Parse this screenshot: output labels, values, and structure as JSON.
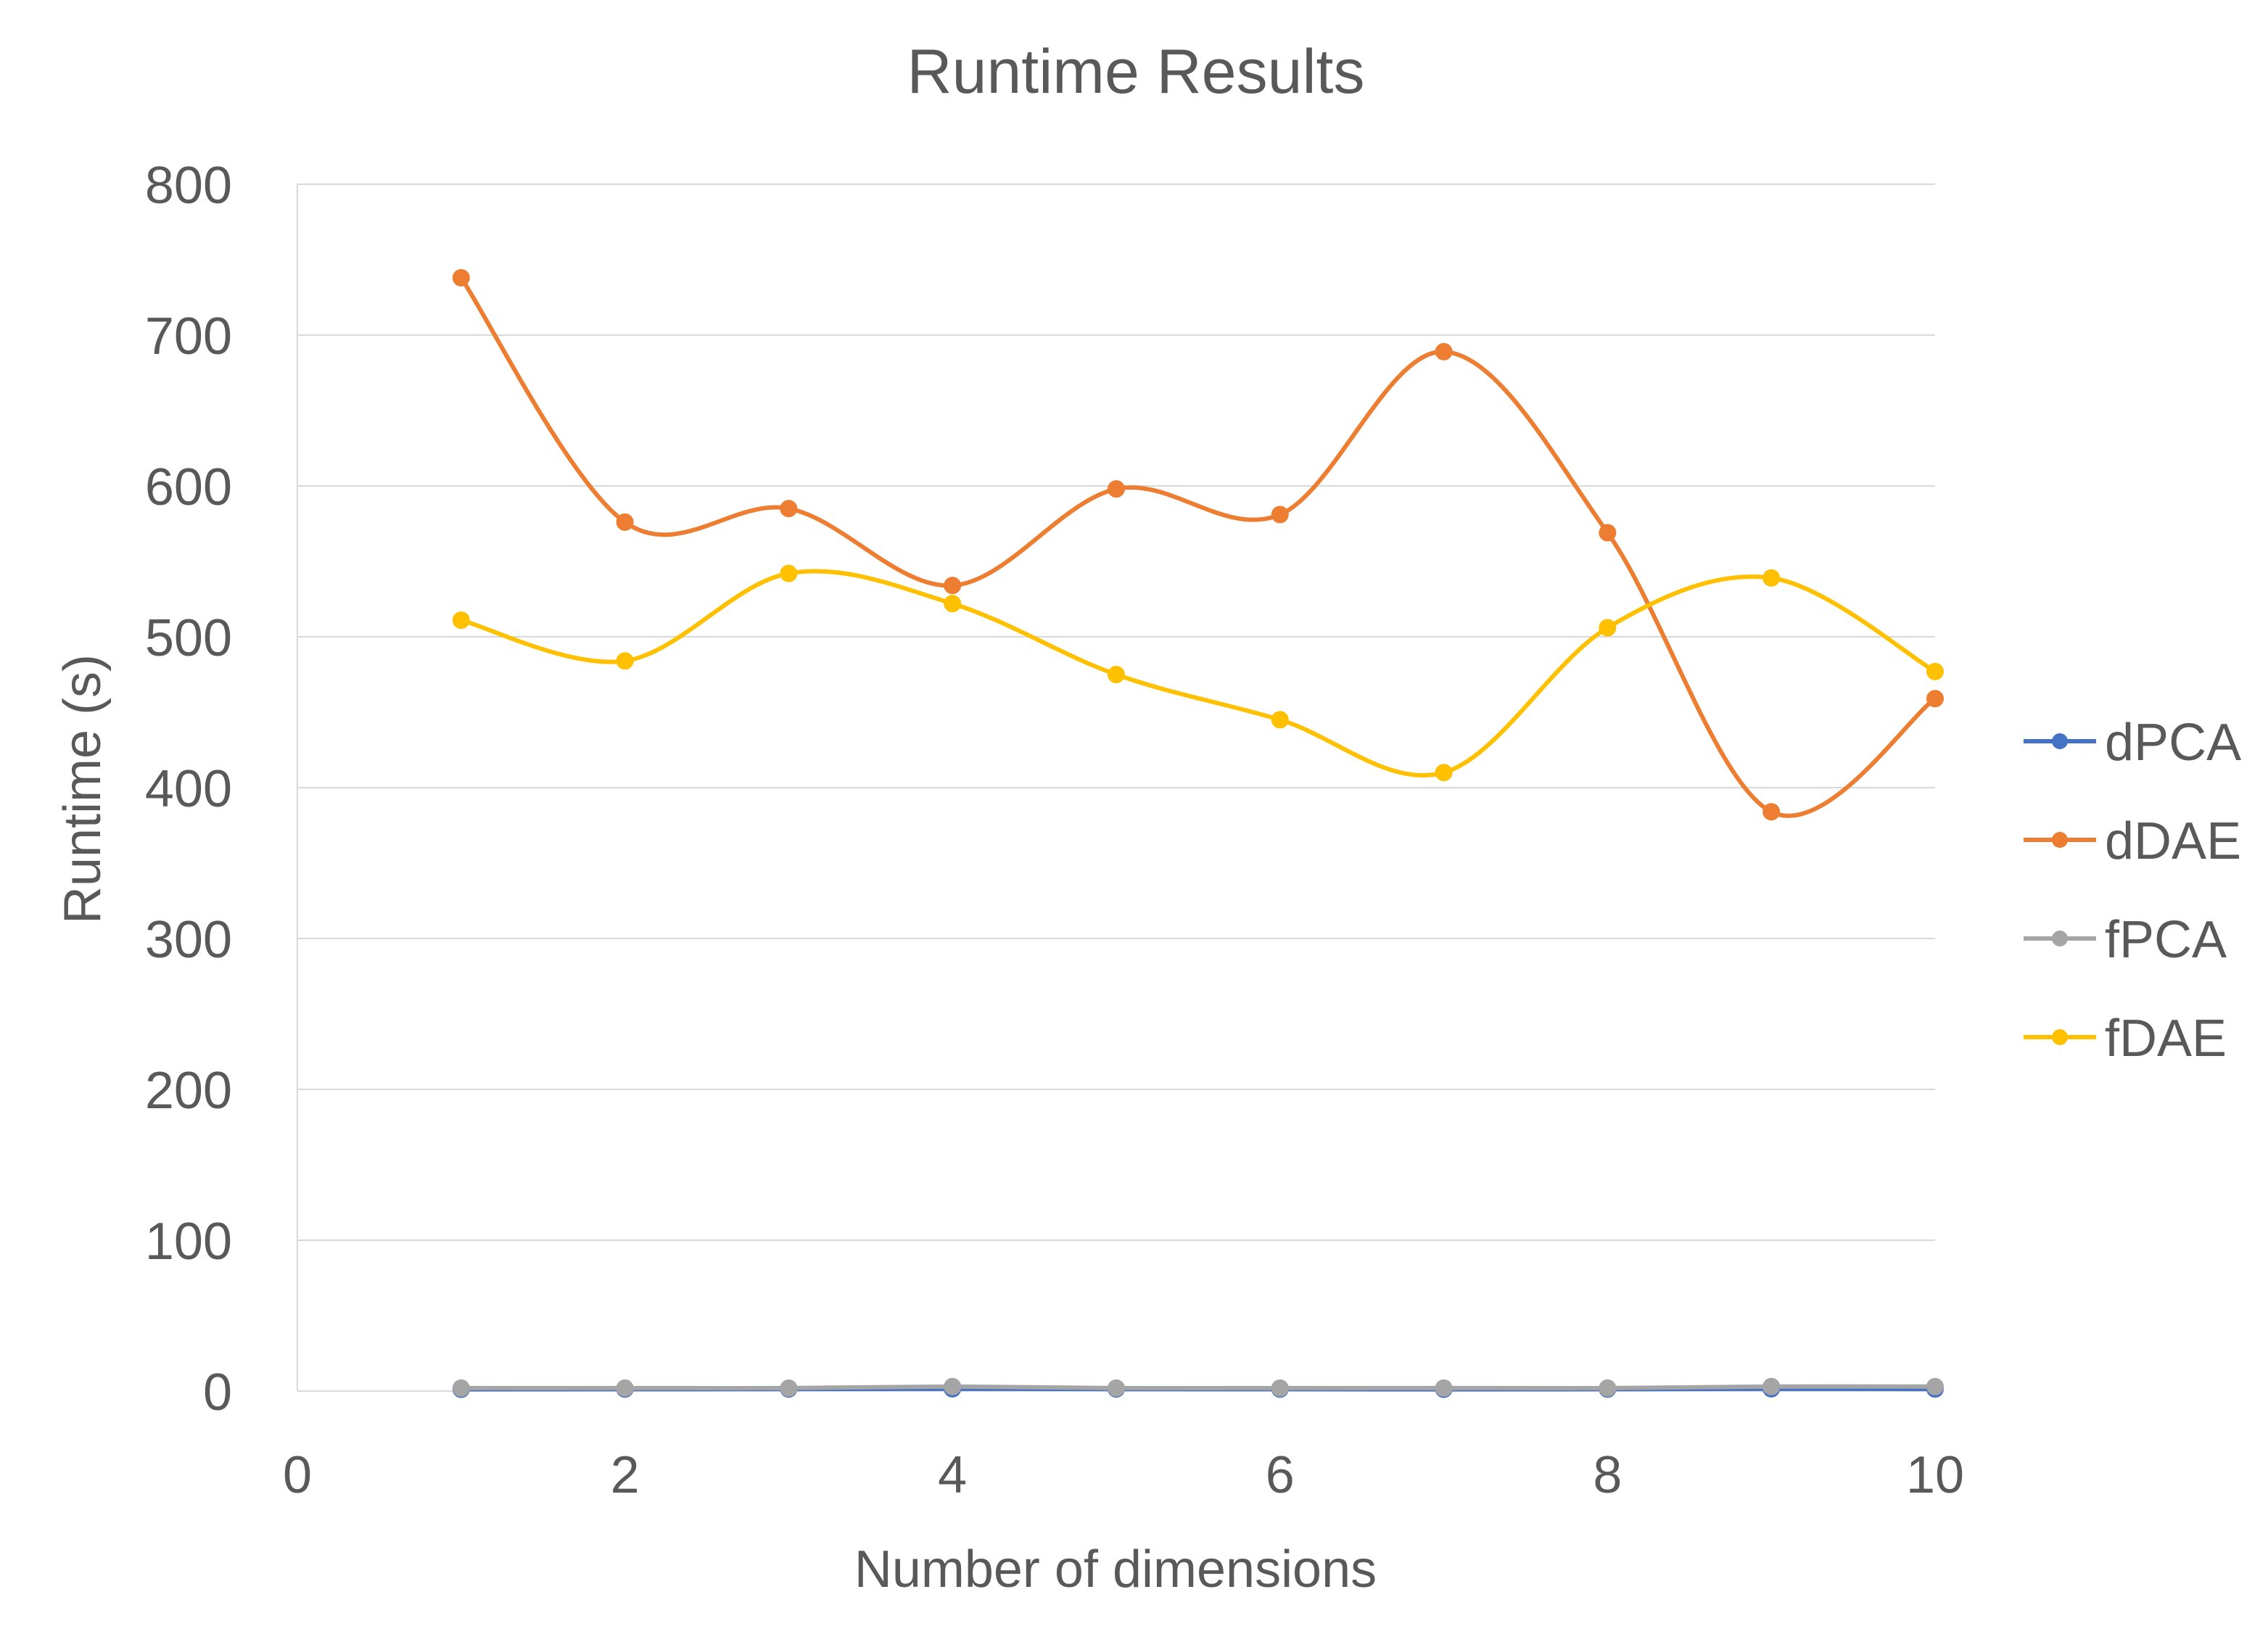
{
  "chart_data": {
    "type": "line",
    "title": "Runtime Results",
    "xlabel": "Number of dimensions",
    "ylabel": "Runtime (s)",
    "xlim": [
      0,
      10
    ],
    "ylim": [
      0,
      800
    ],
    "x_ticks": [
      0,
      2,
      4,
      6,
      8,
      10
    ],
    "y_ticks": [
      0,
      100,
      200,
      300,
      400,
      500,
      600,
      700,
      800
    ],
    "grid": "horizontal",
    "legend_position": "right",
    "x": [
      1,
      2,
      3,
      4,
      5,
      6,
      7,
      8,
      9,
      10
    ],
    "series": [
      {
        "name": "dPCA",
        "color": "#4472C4",
        "values": [
          1.2,
          1.3,
          1.4,
          1.5,
          1.4,
          1.3,
          1.2,
          1.3,
          1.5,
          1.4
        ]
      },
      {
        "name": "dDAE",
        "color": "#ED7D31",
        "values": [
          738,
          576,
          585,
          534,
          598,
          581,
          689,
          569,
          384,
          459
        ]
      },
      {
        "name": "fPCA",
        "color": "#A5A5A5",
        "values": [
          2,
          2,
          2,
          3,
          2,
          2,
          2,
          2,
          3,
          3
        ]
      },
      {
        "name": "fDAE",
        "color": "#FFC000",
        "values": [
          511,
          484,
          542,
          522,
          475,
          445,
          410,
          506,
          539,
          477
        ]
      }
    ]
  }
}
